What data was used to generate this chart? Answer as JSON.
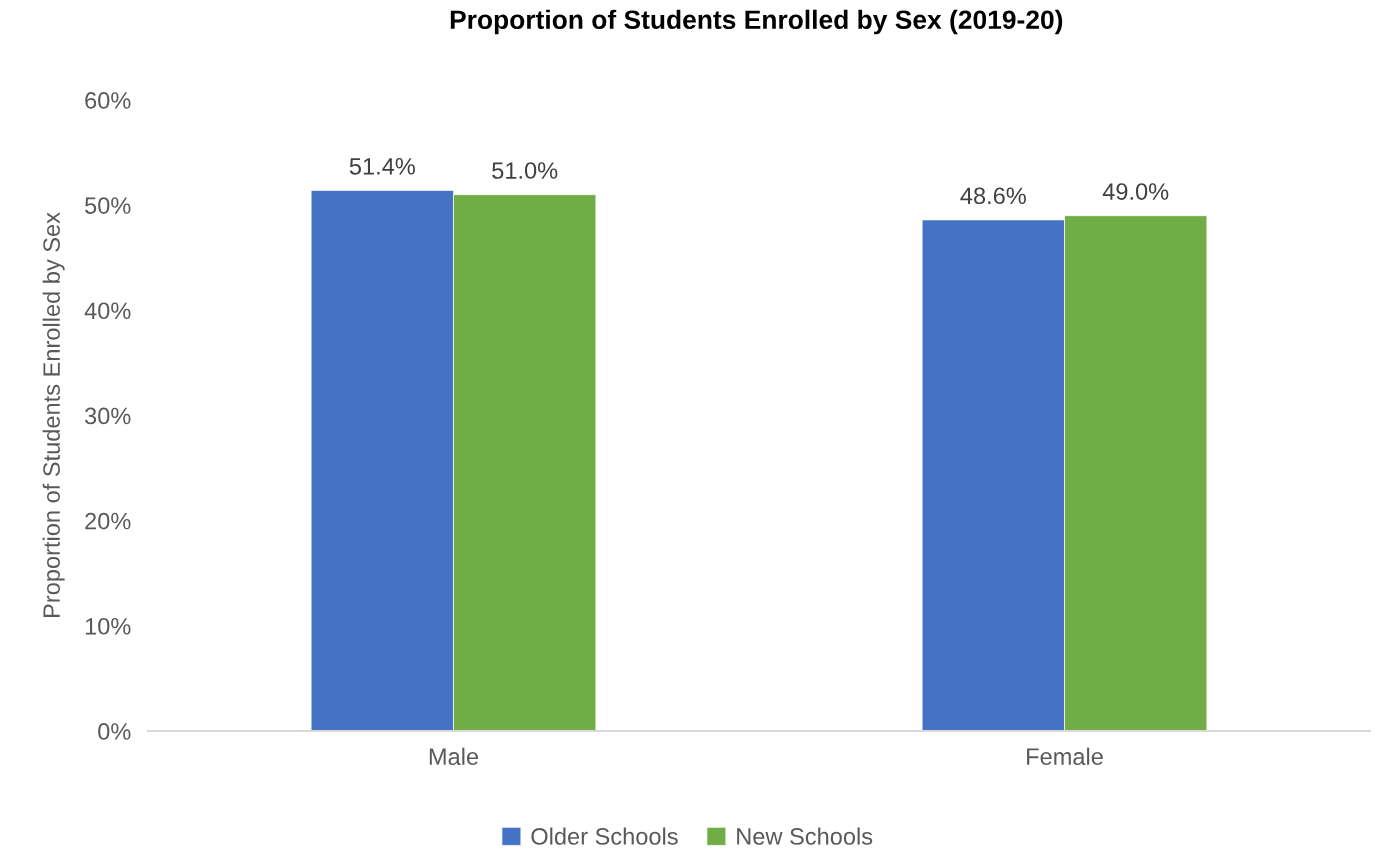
{
  "chart_data": {
    "type": "bar",
    "title": "Proportion of Students Enrolled by Sex (2019-20)",
    "ylabel": "Proportion of Students Enrolled by Sex",
    "categories": [
      "Male",
      "Female"
    ],
    "series": [
      {
        "name": "Older Schools",
        "color": "#4472c4",
        "values": [
          51.4,
          48.6
        ],
        "value_labels": [
          "51.4%",
          "48.6%"
        ]
      },
      {
        "name": "New Schools",
        "color": "#70ad47",
        "values": [
          51.0,
          49.0
        ],
        "value_labels": [
          "51.0%",
          "49.0%"
        ]
      }
    ],
    "ylim": [
      0,
      60
    ],
    "yticks": [
      {
        "value": 0,
        "label": "0%"
      },
      {
        "value": 10,
        "label": "10%"
      },
      {
        "value": 20,
        "label": "20%"
      },
      {
        "value": 30,
        "label": "30%"
      },
      {
        "value": 40,
        "label": "40%"
      },
      {
        "value": 50,
        "label": "50%"
      },
      {
        "value": 60,
        "label": "60%"
      }
    ],
    "grid": false,
    "legend": "bottom"
  }
}
